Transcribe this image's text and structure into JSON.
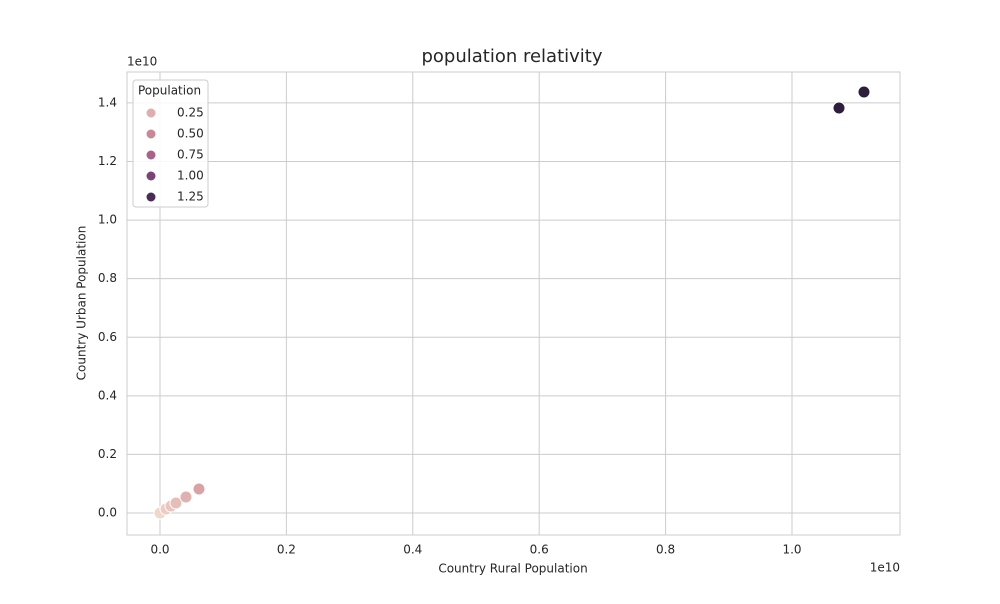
{
  "chart_data": {
    "type": "scatter",
    "title": "population relativity",
    "x_label": "Country Rural Population",
    "y_label": "Country Urban Population",
    "x_offset_label": "1e10",
    "y_offset_label": "1e10",
    "xlim": [
      -0.0522,
      1.1709
    ],
    "ylim": [
      -0.0751,
      1.5056
    ],
    "xticks": [
      {
        "value": 0,
        "label": "0.0"
      },
      0.2,
      0.4,
      0.6,
      0.8,
      {
        "value": 1,
        "label": "1.0"
      }
    ],
    "yticks": [
      {
        "value": 0,
        "label": "0.0"
      },
      0.2,
      0.4,
      0.6,
      0.8,
      {
        "value": 1,
        "label": "1.0"
      },
      1.2,
      1.4
    ],
    "grid": true,
    "series": [
      {
        "x": [
          0,
          0.0095,
          0.0174,
          0.0253,
          0.0411,
          0.0617,
          1.0744,
          1.1139
        ],
        "values": [
          0,
          0.0137,
          0.0239,
          0.0341,
          0.0546,
          0.082,
          1.3827,
          1.4373
        ],
        "colors": [
          "#f0d6cb",
          "#edcdc3",
          "#eac6be",
          "#e6beb8",
          "#e0b1b0",
          "#d9a3a6",
          "#2d1e3e",
          "#2d1e3e"
        ]
      }
    ],
    "legend": {
      "title": "Population",
      "position": "upper left",
      "items": [
        {
          "label": "0.25",
          "color": "#e0aeae"
        },
        {
          "label": "0.50",
          "color": "#c98797"
        },
        {
          "label": "0.75",
          "color": "#a8638a"
        },
        {
          "label": "1.00",
          "color": "#7a4474"
        },
        {
          "label": "1.25",
          "color": "#4a2c57"
        }
      ]
    }
  }
}
